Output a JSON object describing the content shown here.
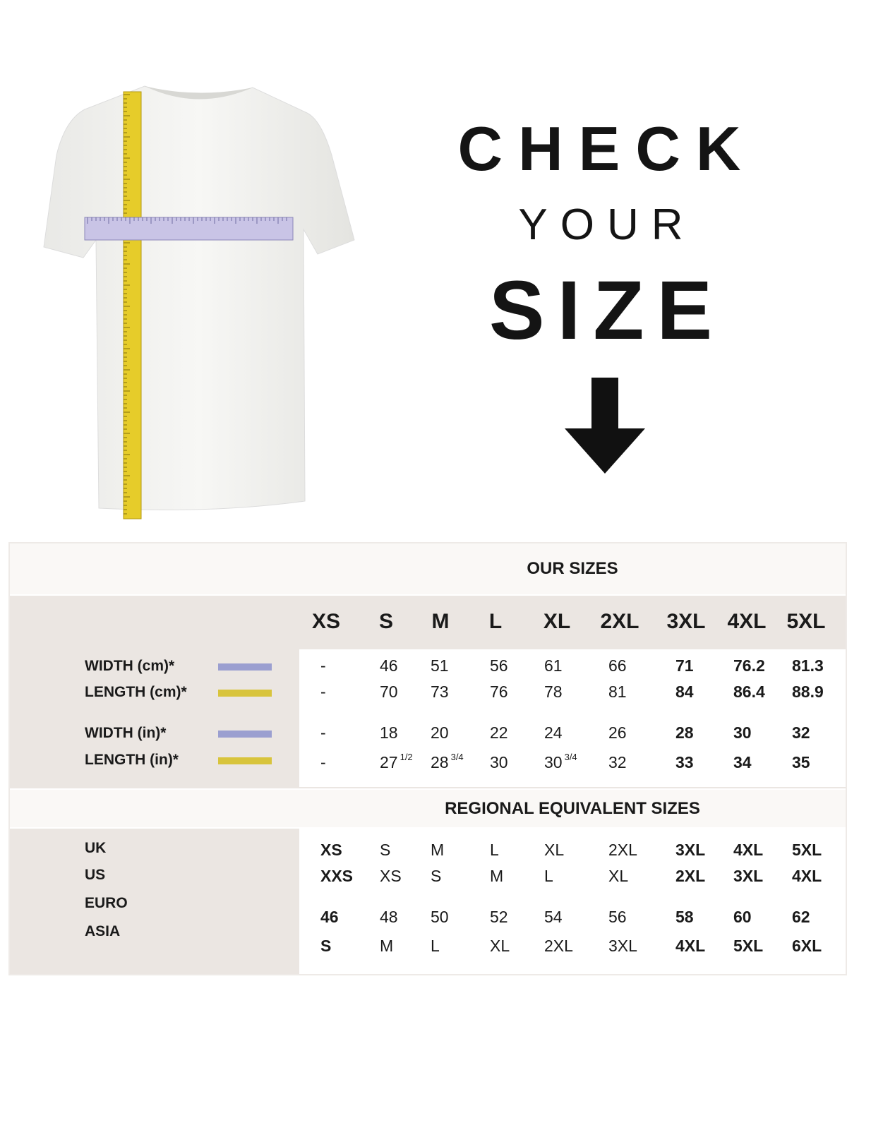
{
  "hero": {
    "line1": "CHECK",
    "line2": "YOUR",
    "line3": "SIZE"
  },
  "colors": {
    "width_swatch": "#9b9fd0",
    "length_swatch": "#d8c43c",
    "panel_gray": "#ebe6e2"
  },
  "table": {
    "our_sizes_title": "OUR SIZES",
    "sizes": [
      "XS",
      "S",
      "M",
      "L",
      "XL",
      "2XL",
      "3XL",
      "4XL",
      "5XL"
    ],
    "measurements": [
      {
        "label": "WIDTH (cm)*",
        "swatch": "width",
        "values": [
          "-",
          "46",
          "51",
          "56",
          "61",
          "66",
          "71",
          "76.2",
          "81.3"
        ]
      },
      {
        "label": "LENGTH (cm)*",
        "swatch": "length",
        "values": [
          "-",
          "70",
          "73",
          "76",
          "78",
          "81",
          "84",
          "86.4",
          "88.9"
        ]
      },
      {
        "label": "WIDTH (in)*",
        "swatch": "width",
        "values": [
          "-",
          "18",
          "20",
          "22",
          "24",
          "26",
          "28",
          "30",
          "32"
        ]
      },
      {
        "label": "LENGTH (in)*",
        "swatch": "length",
        "values": [
          "-",
          "27 1/2",
          "28 3/4",
          "30",
          "30 3/4",
          "32",
          "33",
          "34",
          "35"
        ]
      }
    ],
    "regional_title": "REGIONAL EQUIVALENT SIZES",
    "regional": [
      {
        "label": "UK",
        "values": [
          "XS",
          "S",
          "M",
          "L",
          "XL",
          "2XL",
          "3XL",
          "4XL",
          "5XL"
        ]
      },
      {
        "label": "US",
        "values": [
          "XXS",
          "XS",
          "S",
          "M",
          "L",
          "XL",
          "2XL",
          "3XL",
          "4XL"
        ]
      },
      {
        "label": "EURO",
        "values": [
          "46",
          "48",
          "50",
          "52",
          "54",
          "56",
          "58",
          "60",
          "62"
        ]
      },
      {
        "label": "ASIA",
        "values": [
          "S",
          "M",
          "L",
          "XL",
          "2XL",
          "3XL",
          "4XL",
          "5XL",
          "6XL"
        ]
      }
    ]
  }
}
